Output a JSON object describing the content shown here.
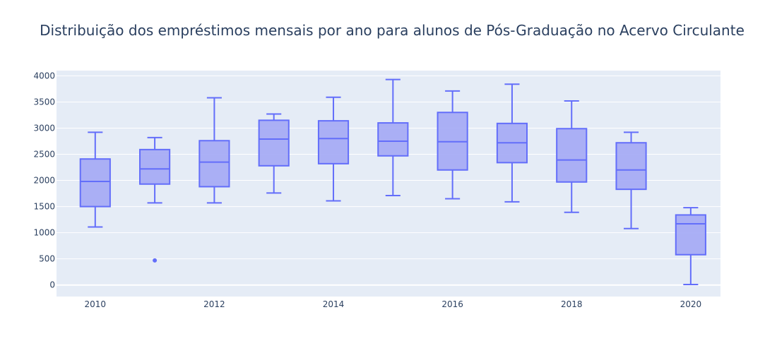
{
  "chart_data": {
    "type": "box",
    "title": "Distribuição dos empréstimos mensais por ano para alunos de Pós-Graduação no Acervo Circulante",
    "xlabel": "",
    "ylabel": "",
    "ylim": [
      -220,
      4100
    ],
    "xlim": [
      2009.35,
      2020.5
    ],
    "y_ticks": [
      0,
      500,
      1000,
      1500,
      2000,
      2500,
      3000,
      3500,
      4000
    ],
    "x_ticks": [
      2010,
      2012,
      2014,
      2016,
      2018,
      2020
    ],
    "grid": true,
    "legend": "none",
    "colors": {
      "box_line": "#636efa",
      "box_fill": "#a3a8f5",
      "plot_bg": "#e5ecf6",
      "grid": "#ffffff",
      "text": "#2a3f5f"
    },
    "boxes": [
      {
        "x": 2010,
        "min": 1110,
        "q1": 1500,
        "median": 1980,
        "q3": 2410,
        "max": 2920,
        "outliers": []
      },
      {
        "x": 2011,
        "min": 1570,
        "q1": 1930,
        "median": 2220,
        "q3": 2590,
        "max": 2820,
        "outliers": [
          470
        ]
      },
      {
        "x": 2012,
        "min": 1570,
        "q1": 1880,
        "median": 2350,
        "q3": 2760,
        "max": 3580,
        "outliers": []
      },
      {
        "x": 2013,
        "min": 1760,
        "q1": 2280,
        "median": 2790,
        "q3": 3150,
        "max": 3270,
        "outliers": []
      },
      {
        "x": 2014,
        "min": 1610,
        "q1": 2320,
        "median": 2800,
        "q3": 3140,
        "max": 3590,
        "outliers": []
      },
      {
        "x": 2015,
        "min": 1710,
        "q1": 2470,
        "median": 2750,
        "q3": 3100,
        "max": 3930,
        "outliers": []
      },
      {
        "x": 2016,
        "min": 1650,
        "q1": 2200,
        "median": 2740,
        "q3": 3300,
        "max": 3710,
        "outliers": []
      },
      {
        "x": 2017,
        "min": 1590,
        "q1": 2340,
        "median": 2720,
        "q3": 3090,
        "max": 3840,
        "outliers": []
      },
      {
        "x": 2018,
        "min": 1390,
        "q1": 1970,
        "median": 2390,
        "q3": 2990,
        "max": 3520,
        "outliers": []
      },
      {
        "x": 2019,
        "min": 1080,
        "q1": 1830,
        "median": 2200,
        "q3": 2720,
        "max": 2920,
        "outliers": []
      },
      {
        "x": 2020,
        "min": 10,
        "q1": 580,
        "median": 1170,
        "q3": 1340,
        "max": 1480,
        "outliers": []
      }
    ]
  }
}
